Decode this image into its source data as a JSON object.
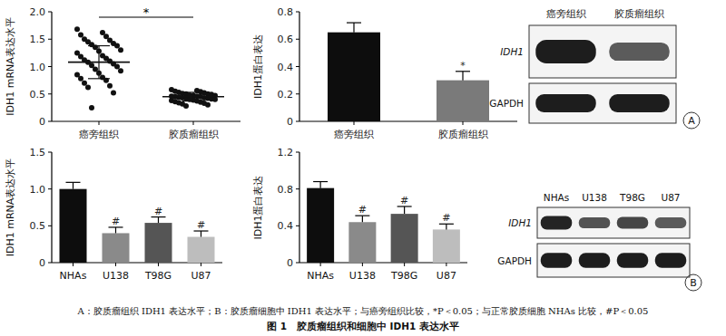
{
  "chart_data": [
    {
      "type": "dot",
      "y_label": "IDH1 mRNA表达水平",
      "categories": [
        "癌旁组织",
        "胶质瘤组织"
      ],
      "points": [
        [
          1.68,
          1.62,
          1.58,
          1.55,
          1.5,
          1.48,
          1.45,
          1.42,
          1.4,
          1.38,
          1.35,
          1.3,
          1.28,
          1.25,
          1.2,
          1.18,
          1.15,
          1.12,
          1.1,
          1.08,
          1.05,
          1.02,
          1.0,
          0.95,
          0.92,
          0.88,
          0.85,
          0.8,
          0.78,
          0.75,
          0.7,
          0.65,
          0.62,
          0.52,
          0.25
        ],
        [
          0.58,
          0.56,
          0.55,
          0.54,
          0.53,
          0.52,
          0.51,
          0.5,
          0.5,
          0.49,
          0.48,
          0.47,
          0.47,
          0.46,
          0.46,
          0.45,
          0.45,
          0.44,
          0.43,
          0.43,
          0.42,
          0.42,
          0.41,
          0.4,
          0.4,
          0.39,
          0.38,
          0.37,
          0.36,
          0.35,
          0.34,
          0.33,
          0.32,
          0.3,
          0.28
        ]
      ],
      "means": [
        1.08,
        0.45
      ],
      "errors": [
        0.3,
        0.08
      ],
      "color": "#111111",
      "annotation": "*",
      "ylim": [
        0,
        2
      ],
      "yticks": [
        0,
        0.5,
        {
          "value": 1,
          "label": "1.0"
        },
        1.5,
        {
          "value": 2,
          "label": "2.0"
        }
      ],
      "grid": false
    },
    {
      "type": "bar",
      "y_label": "IDH1蛋白表达",
      "categories": [
        "癌旁组织",
        "胶质瘤组织"
      ],
      "values": [
        0.65,
        0.3
      ],
      "errors": [
        0.07,
        0.065
      ],
      "annotations": [
        null,
        "*"
      ],
      "colors": [
        "#0d0d0d",
        "#7a7a7a"
      ],
      "ylim": [
        0,
        0.8
      ],
      "yticks": [
        0,
        0.2,
        0.4,
        0.6,
        0.8
      ],
      "grid": false
    },
    {
      "type": "bar",
      "y_label": "IDH1 mRNA表达水平",
      "categories": [
        "NHAs",
        "U138",
        "T98G",
        "U87"
      ],
      "values": [
        1.0,
        0.4,
        0.54,
        0.35
      ],
      "errors": [
        0.09,
        0.08,
        0.08,
        0.08
      ],
      "annotations": [
        null,
        "#",
        "#",
        "#"
      ],
      "colors": [
        "#0d0d0d",
        "#8a8a8a",
        "#555555",
        "#bdbdbd"
      ],
      "ylim": [
        0,
        1.5
      ],
      "yticks": [
        0,
        0.5,
        {
          "value": 1,
          "label": "1.0"
        },
        1.5
      ],
      "grid": false
    },
    {
      "type": "bar",
      "y_label": "IDH1蛋白表达",
      "categories": [
        "NHAs",
        "U138",
        "T98G",
        "U87"
      ],
      "values": [
        0.81,
        0.44,
        0.53,
        0.36
      ],
      "errors": [
        0.07,
        0.07,
        0.08,
        0.06
      ],
      "annotations": [
        null,
        "#",
        "#",
        "#"
      ],
      "colors": [
        "#0d0d0d",
        "#8a8a8a",
        "#555555",
        "#bdbdbd"
      ],
      "ylim": [
        0,
        1.2
      ],
      "yticks": [
        0,
        0.4,
        0.8,
        1.2
      ],
      "grid": false
    }
  ],
  "blots": [
    {
      "label": "A",
      "lanes": [
        "癌旁组织",
        "胶质瘤组织"
      ],
      "rows": [
        "IDH1",
        "GAPDH"
      ],
      "bands": [
        [
          1,
          0.55
        ],
        [
          1,
          1
        ]
      ]
    },
    {
      "label": "B",
      "lanes": [
        "NHAs",
        "U138",
        "T98G",
        "U87"
      ],
      "rows": [
        "IDH1",
        "GAPDH"
      ],
      "bands": [
        [
          0.95,
          0.6,
          0.7,
          0.55
        ],
        [
          1,
          1,
          1,
          1
        ]
      ]
    }
  ],
  "caption": "A：胶质瘤组织 IDH1 表达水平；B：胶质瘤细胞中 IDH1 表达水平；与癌旁组织比较，*P＜0.05；与正常胶质细胞 NHAs 比较，#P＜0.05",
  "title": "图 1　胶质瘤组织和细胞中 IDH1 表达水平"
}
